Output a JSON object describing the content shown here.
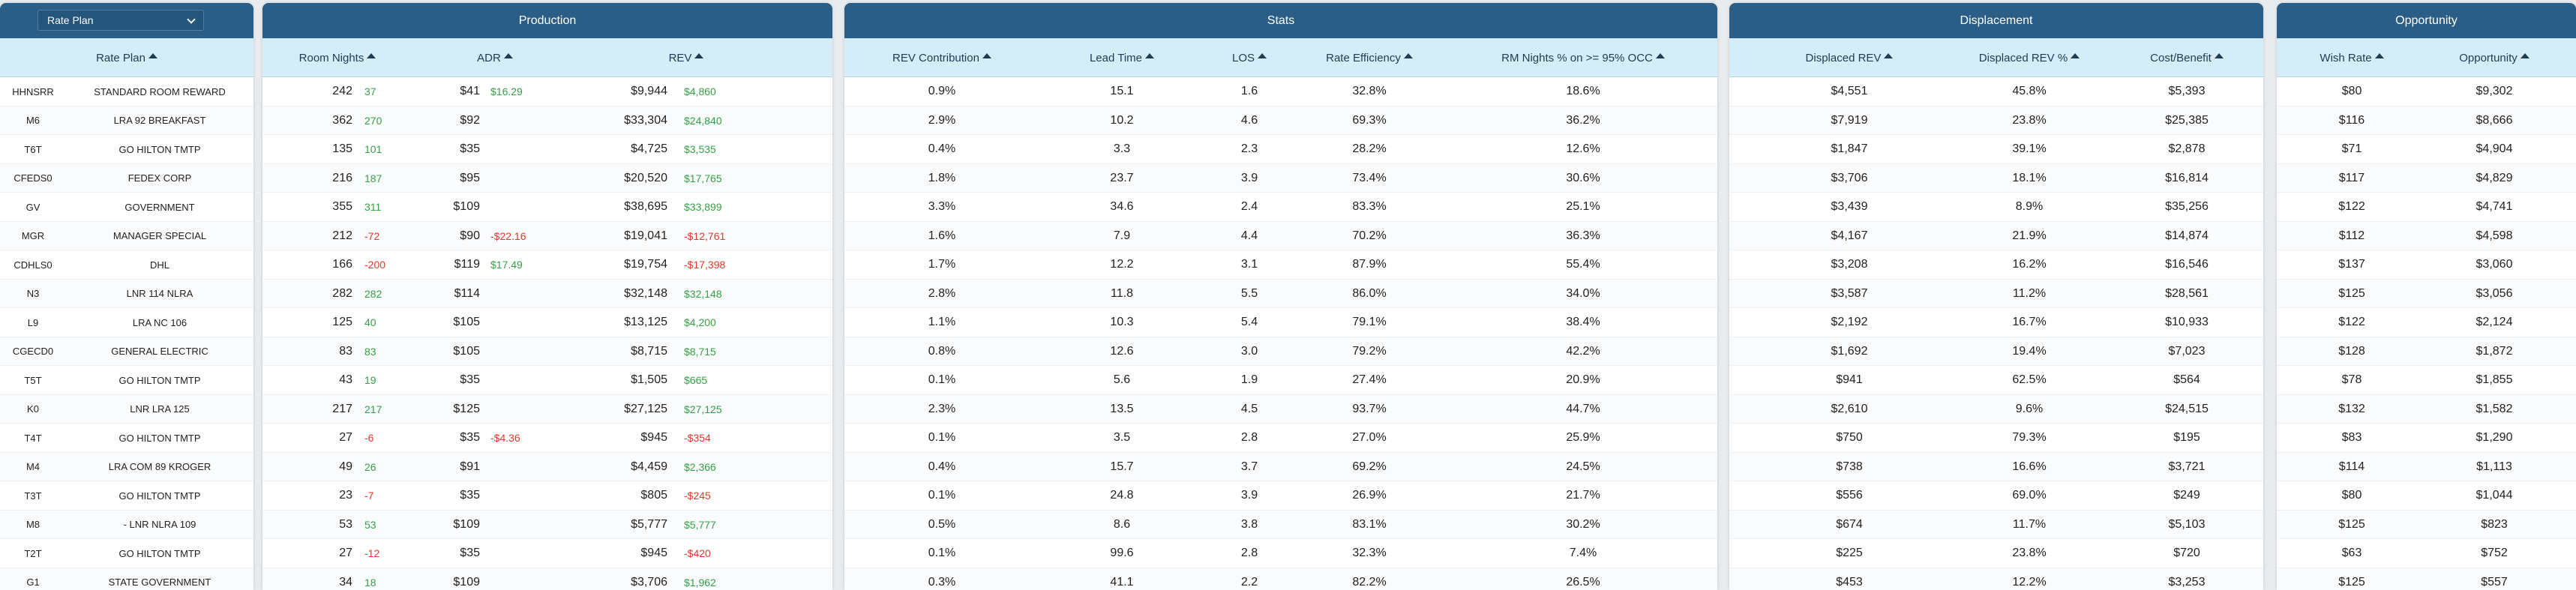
{
  "rate_plan_panel": {
    "select_value": "Rate Plan",
    "header": "Rate Plan"
  },
  "production": {
    "title": "Production",
    "headers": {
      "room_nights": "Room Nights",
      "adr": "ADR",
      "rev": "REV"
    }
  },
  "stats": {
    "title": "Stats",
    "headers": {
      "rev_contribution": "REV Contribution",
      "lead_time": "Lead Time",
      "los": "LOS",
      "rate_efficiency": "Rate Efficiency",
      "rm_nights_occ": "RM Nights % on >= 95% OCC"
    }
  },
  "displacement": {
    "title": "Displacement",
    "headers": {
      "displaced_rev": "Displaced REV",
      "displaced_rev_pct": "Displaced REV %",
      "cost_benefit": "Cost/Benefit"
    }
  },
  "opportunity": {
    "title": "Opportunity",
    "headers": {
      "wish_rate": "Wish Rate",
      "opportunity": "Opportunity"
    }
  },
  "colors": {
    "header_bar": "#2b5e86",
    "column_header": "#d5ecf9",
    "positive": "#35a046",
    "negative": "#e0392b"
  },
  "rows": [
    {
      "code": "HHNSRR",
      "name": "STANDARD ROOM REWARD",
      "rn": "242",
      "rn_d": "37",
      "rn_s": "pos",
      "adr": "$41",
      "adr_d": "$16.29",
      "adr_s": "pos",
      "rev": "$9,944",
      "rev_d": "$4,860",
      "rev_s": "pos",
      "contrib": "0.9%",
      "lead": "15.1",
      "los": "1.6",
      "eff": "32.8%",
      "occ": "18.6%",
      "drev": "$4,551",
      "dpct": "45.8%",
      "cb": "$5,393",
      "wish": "$80",
      "opp": "$9,302"
    },
    {
      "code": "M6",
      "name": "LRA 92 BREAKFAST",
      "rn": "362",
      "rn_d": "270",
      "rn_s": "pos",
      "adr": "$92",
      "adr_d": "",
      "adr_s": "pos",
      "rev": "$33,304",
      "rev_d": "$24,840",
      "rev_s": "pos",
      "contrib": "2.9%",
      "lead": "10.2",
      "los": "4.6",
      "eff": "69.3%",
      "occ": "36.2%",
      "drev": "$7,919",
      "dpct": "23.8%",
      "cb": "$25,385",
      "wish": "$116",
      "opp": "$8,666"
    },
    {
      "code": "T6T",
      "name": "GO HILTON TMTP",
      "rn": "135",
      "rn_d": "101",
      "rn_s": "pos",
      "adr": "$35",
      "adr_d": "",
      "adr_s": "pos",
      "rev": "$4,725",
      "rev_d": "$3,535",
      "rev_s": "pos",
      "contrib": "0.4%",
      "lead": "3.3",
      "los": "2.3",
      "eff": "28.2%",
      "occ": "12.6%",
      "drev": "$1,847",
      "dpct": "39.1%",
      "cb": "$2,878",
      "wish": "$71",
      "opp": "$4,904"
    },
    {
      "code": "CFEDS0",
      "name": "FEDEX CORP",
      "rn": "216",
      "rn_d": "187",
      "rn_s": "pos",
      "adr": "$95",
      "adr_d": "",
      "adr_s": "pos",
      "rev": "$20,520",
      "rev_d": "$17,765",
      "rev_s": "pos",
      "contrib": "1.8%",
      "lead": "23.7",
      "los": "3.9",
      "eff": "73.4%",
      "occ": "30.6%",
      "drev": "$3,706",
      "dpct": "18.1%",
      "cb": "$16,814",
      "wish": "$117",
      "opp": "$4,829"
    },
    {
      "code": "GV",
      "name": "GOVERNMENT",
      "rn": "355",
      "rn_d": "311",
      "rn_s": "pos",
      "adr": "$109",
      "adr_d": "",
      "adr_s": "pos",
      "rev": "$38,695",
      "rev_d": "$33,899",
      "rev_s": "pos",
      "contrib": "3.3%",
      "lead": "34.6",
      "los": "2.4",
      "eff": "83.3%",
      "occ": "25.1%",
      "drev": "$3,439",
      "dpct": "8.9%",
      "cb": "$35,256",
      "wish": "$122",
      "opp": "$4,741"
    },
    {
      "code": "MGR",
      "name": "MANAGER SPECIAL",
      "rn": "212",
      "rn_d": "-72",
      "rn_s": "neg",
      "adr": "$90",
      "adr_d": "-$22.16",
      "adr_s": "neg",
      "rev": "$19,041",
      "rev_d": "-$12,761",
      "rev_s": "neg",
      "contrib": "1.6%",
      "lead": "7.9",
      "los": "4.4",
      "eff": "70.2%",
      "occ": "36.3%",
      "drev": "$4,167",
      "dpct": "21.9%",
      "cb": "$14,874",
      "wish": "$112",
      "opp": "$4,598"
    },
    {
      "code": "CDHLS0",
      "name": "DHL",
      "rn": "166",
      "rn_d": "-200",
      "rn_s": "neg",
      "adr": "$119",
      "adr_d": "$17.49",
      "adr_s": "pos",
      "rev": "$19,754",
      "rev_d": "-$17,398",
      "rev_s": "neg",
      "contrib": "1.7%",
      "lead": "12.2",
      "los": "3.1",
      "eff": "87.9%",
      "occ": "55.4%",
      "drev": "$3,208",
      "dpct": "16.2%",
      "cb": "$16,546",
      "wish": "$137",
      "opp": "$3,060"
    },
    {
      "code": "N3",
      "name": "LNR 114 NLRA",
      "rn": "282",
      "rn_d": "282",
      "rn_s": "pos",
      "adr": "$114",
      "adr_d": "",
      "adr_s": "pos",
      "rev": "$32,148",
      "rev_d": "$32,148",
      "rev_s": "pos",
      "contrib": "2.8%",
      "lead": "11.8",
      "los": "5.5",
      "eff": "86.0%",
      "occ": "34.0%",
      "drev": "$3,587",
      "dpct": "11.2%",
      "cb": "$28,561",
      "wish": "$125",
      "opp": "$3,056"
    },
    {
      "code": "L9",
      "name": "LRA NC 106",
      "rn": "125",
      "rn_d": "40",
      "rn_s": "pos",
      "adr": "$105",
      "adr_d": "",
      "adr_s": "pos",
      "rev": "$13,125",
      "rev_d": "$4,200",
      "rev_s": "pos",
      "contrib": "1.1%",
      "lead": "10.3",
      "los": "5.4",
      "eff": "79.1%",
      "occ": "38.4%",
      "drev": "$2,192",
      "dpct": "16.7%",
      "cb": "$10,933",
      "wish": "$122",
      "opp": "$2,124"
    },
    {
      "code": "CGECD0",
      "name": "GENERAL ELECTRIC",
      "rn": "83",
      "rn_d": "83",
      "rn_s": "pos",
      "adr": "$105",
      "adr_d": "",
      "adr_s": "pos",
      "rev": "$8,715",
      "rev_d": "$8,715",
      "rev_s": "pos",
      "contrib": "0.8%",
      "lead": "12.6",
      "los": "3.0",
      "eff": "79.2%",
      "occ": "42.2%",
      "drev": "$1,692",
      "dpct": "19.4%",
      "cb": "$7,023",
      "wish": "$128",
      "opp": "$1,872"
    },
    {
      "code": "T5T",
      "name": "GO HILTON TMTP",
      "rn": "43",
      "rn_d": "19",
      "rn_s": "pos",
      "adr": "$35",
      "adr_d": "",
      "adr_s": "pos",
      "rev": "$1,505",
      "rev_d": "$665",
      "rev_s": "pos",
      "contrib": "0.1%",
      "lead": "5.6",
      "los": "1.9",
      "eff": "27.4%",
      "occ": "20.9%",
      "drev": "$941",
      "dpct": "62.5%",
      "cb": "$564",
      "wish": "$78",
      "opp": "$1,855"
    },
    {
      "code": "K0",
      "name": "LNR LRA 125",
      "rn": "217",
      "rn_d": "217",
      "rn_s": "pos",
      "adr": "$125",
      "adr_d": "",
      "adr_s": "pos",
      "rev": "$27,125",
      "rev_d": "$27,125",
      "rev_s": "pos",
      "contrib": "2.3%",
      "lead": "13.5",
      "los": "4.5",
      "eff": "93.7%",
      "occ": "44.7%",
      "drev": "$2,610",
      "dpct": "9.6%",
      "cb": "$24,515",
      "wish": "$132",
      "opp": "$1,582"
    },
    {
      "code": "T4T",
      "name": "GO HILTON TMTP",
      "rn": "27",
      "rn_d": "-6",
      "rn_s": "neg",
      "adr": "$35",
      "adr_d": "-$4.36",
      "adr_s": "neg",
      "rev": "$945",
      "rev_d": "-$354",
      "rev_s": "neg",
      "contrib": "0.1%",
      "lead": "3.5",
      "los": "2.8",
      "eff": "27.0%",
      "occ": "25.9%",
      "drev": "$750",
      "dpct": "79.3%",
      "cb": "$195",
      "wish": "$83",
      "opp": "$1,290"
    },
    {
      "code": "M4",
      "name": "LRA COM 89 KROGER",
      "rn": "49",
      "rn_d": "26",
      "rn_s": "pos",
      "adr": "$91",
      "adr_d": "",
      "adr_s": "pos",
      "rev": "$4,459",
      "rev_d": "$2,366",
      "rev_s": "pos",
      "contrib": "0.4%",
      "lead": "15.7",
      "los": "3.7",
      "eff": "69.2%",
      "occ": "24.5%",
      "drev": "$738",
      "dpct": "16.6%",
      "cb": "$3,721",
      "wish": "$114",
      "opp": "$1,113"
    },
    {
      "code": "T3T",
      "name": "GO HILTON TMTP",
      "rn": "23",
      "rn_d": "-7",
      "rn_s": "neg",
      "adr": "$35",
      "adr_d": "",
      "adr_s": "pos",
      "rev": "$805",
      "rev_d": "-$245",
      "rev_s": "neg",
      "contrib": "0.1%",
      "lead": "24.8",
      "los": "3.9",
      "eff": "26.9%",
      "occ": "21.7%",
      "drev": "$556",
      "dpct": "69.0%",
      "cb": "$249",
      "wish": "$80",
      "opp": "$1,044"
    },
    {
      "code": "M8",
      "name": "- LNR NLRA 109",
      "rn": "53",
      "rn_d": "53",
      "rn_s": "pos",
      "adr": "$109",
      "adr_d": "",
      "adr_s": "pos",
      "rev": "$5,777",
      "rev_d": "$5,777",
      "rev_s": "pos",
      "contrib": "0.5%",
      "lead": "8.6",
      "los": "3.8",
      "eff": "83.1%",
      "occ": "30.2%",
      "drev": "$674",
      "dpct": "11.7%",
      "cb": "$5,103",
      "wish": "$125",
      "opp": "$823"
    },
    {
      "code": "T2T",
      "name": "GO HILTON TMTP",
      "rn": "27",
      "rn_d": "-12",
      "rn_s": "neg",
      "adr": "$35",
      "adr_d": "",
      "adr_s": "pos",
      "rev": "$945",
      "rev_d": "-$420",
      "rev_s": "neg",
      "contrib": "0.1%",
      "lead": "99.6",
      "los": "2.8",
      "eff": "32.3%",
      "occ": "7.4%",
      "drev": "$225",
      "dpct": "23.8%",
      "cb": "$720",
      "wish": "$63",
      "opp": "$752"
    },
    {
      "code": "G1",
      "name": "STATE GOVERNMENT",
      "rn": "34",
      "rn_d": "18",
      "rn_s": "pos",
      "adr": "$109",
      "adr_d": "",
      "adr_s": "pos",
      "rev": "$3,706",
      "rev_d": "$1,962",
      "rev_s": "pos",
      "contrib": "0.3%",
      "lead": "41.1",
      "los": "2.2",
      "eff": "82.2%",
      "occ": "26.5%",
      "drev": "$453",
      "dpct": "12.2%",
      "cb": "$3,253",
      "wish": "$125",
      "opp": "$557"
    }
  ]
}
